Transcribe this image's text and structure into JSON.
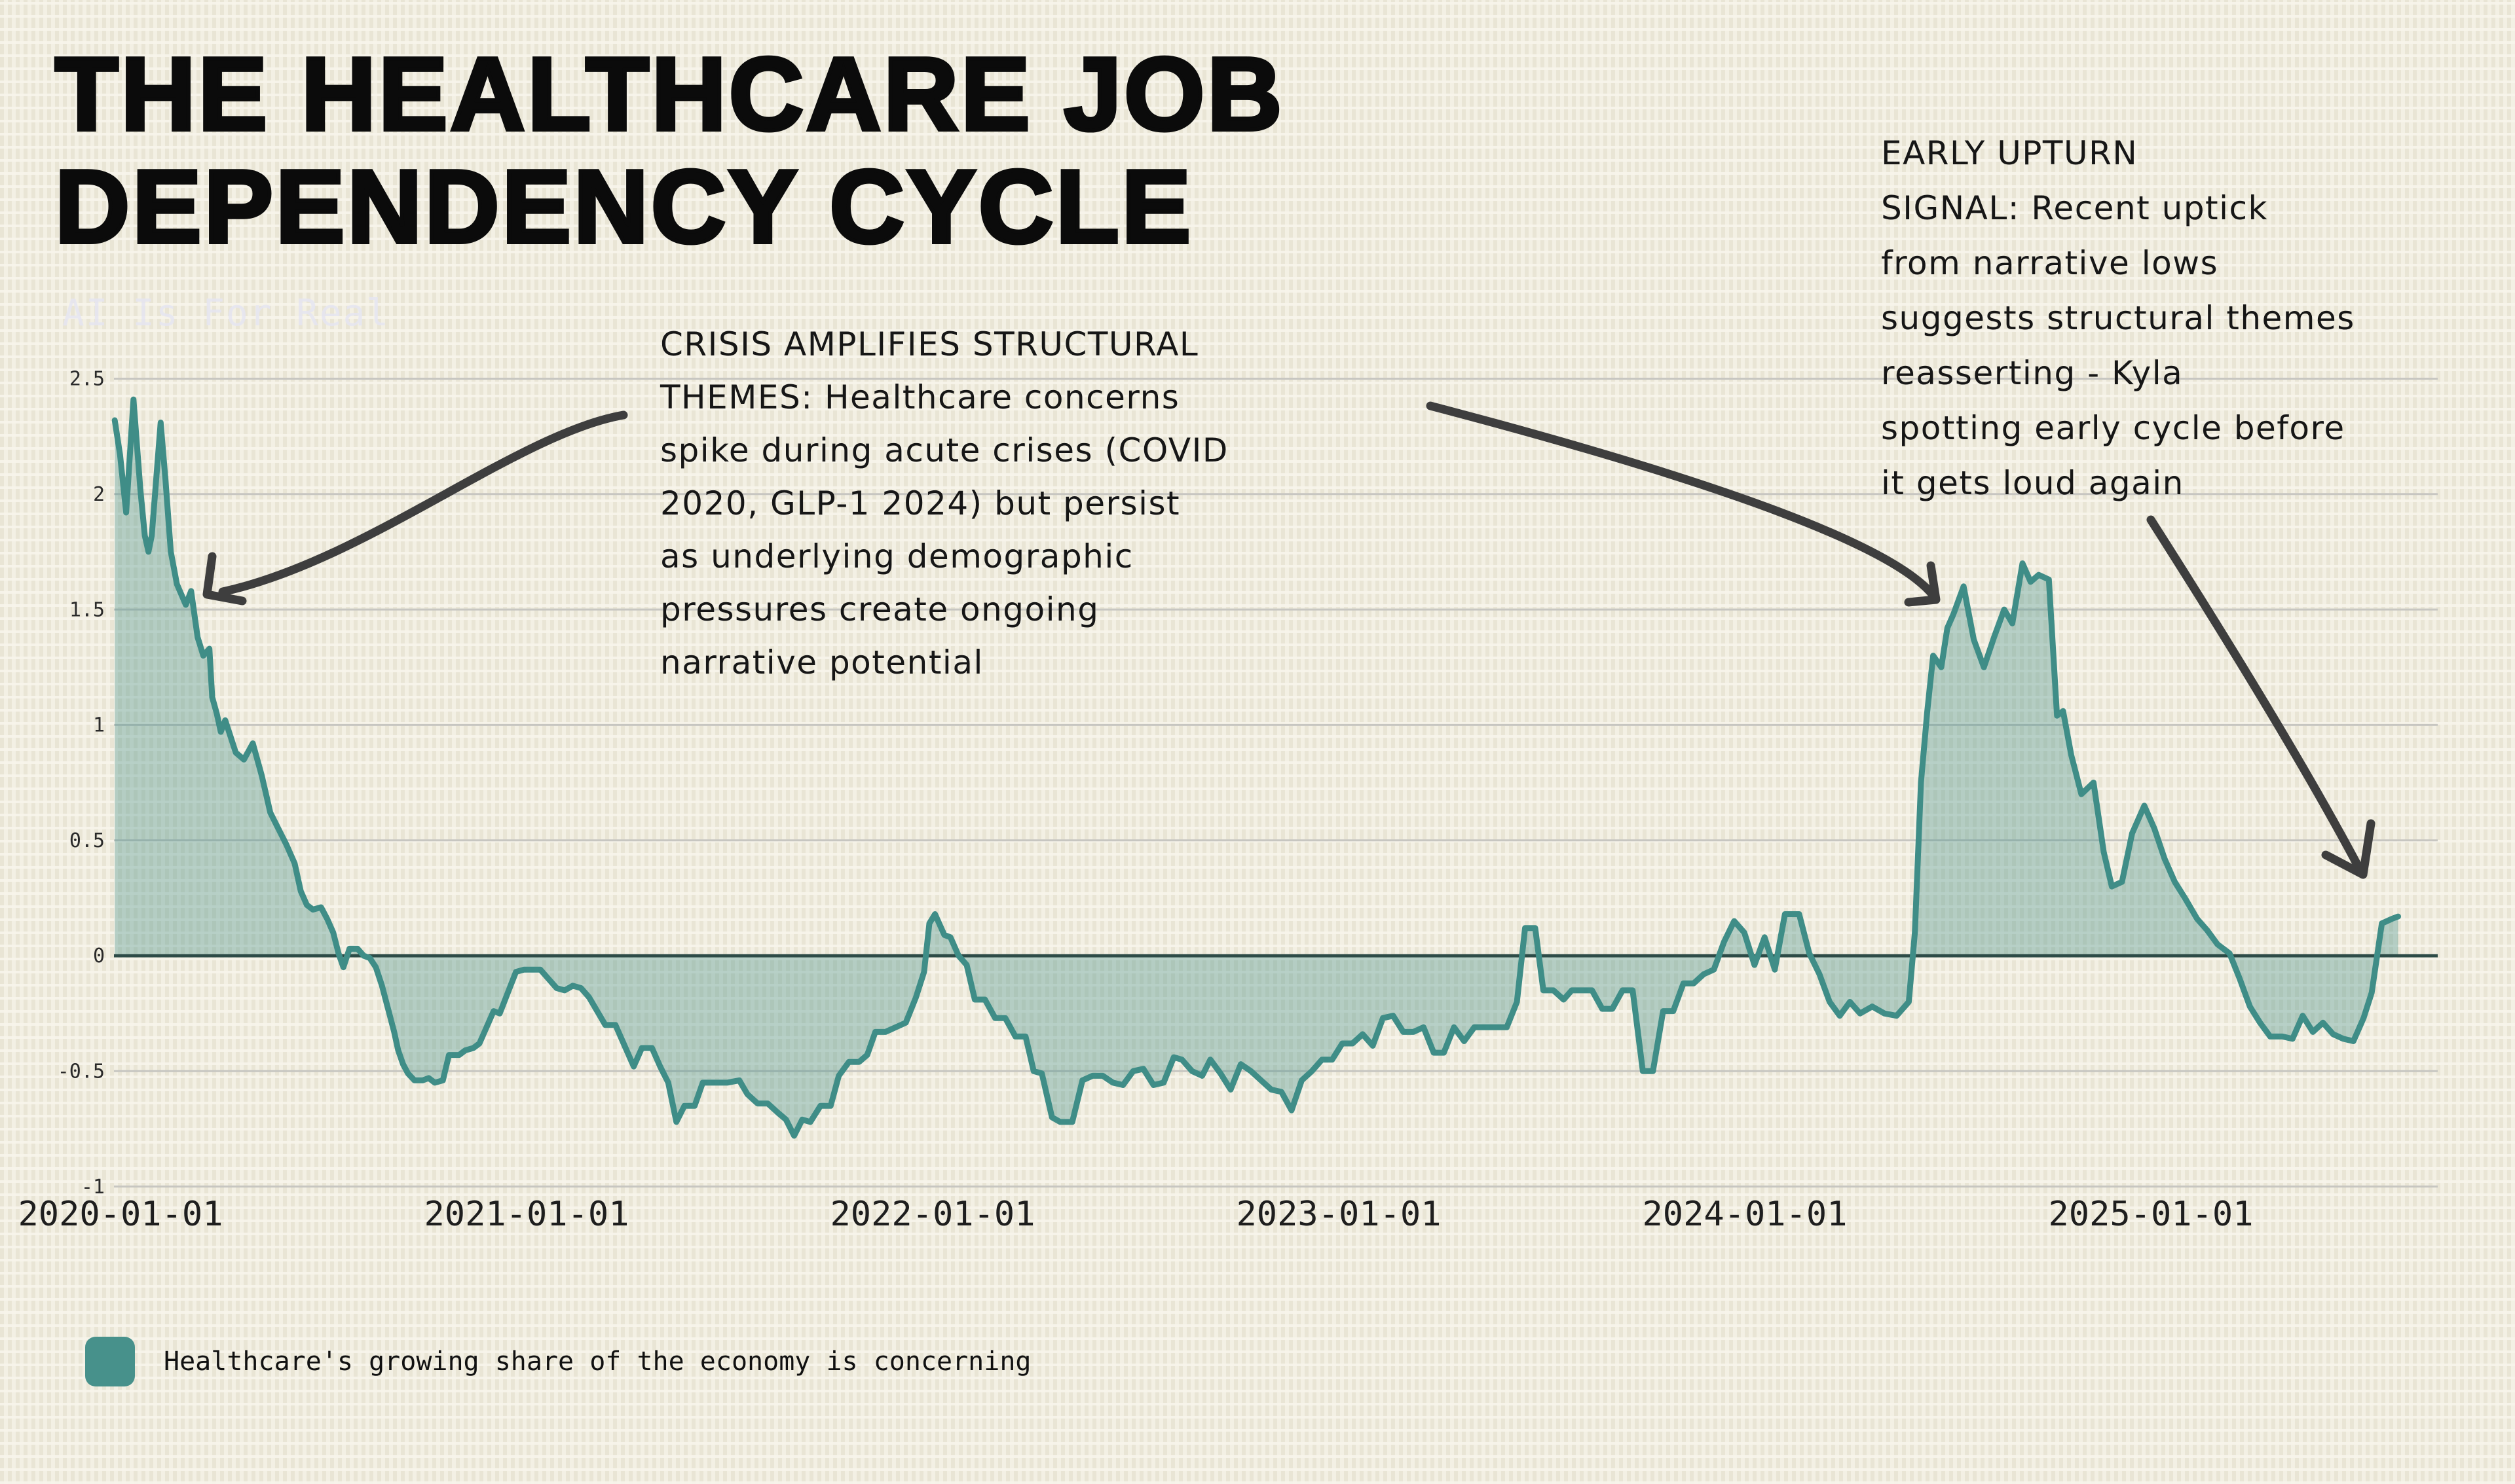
{
  "page": {
    "title_line1": "THE HEALTHCARE JOB",
    "title_line2": "DEPENDENCY CYCLE",
    "watermark": "AI Is For Real"
  },
  "annotations": {
    "crisis": "CRISIS AMPLIFIES STRUCTURAL\nTHEMES: Healthcare concerns\nspike during acute crises (COVID\n2020, GLP-1 2024) but persist\nas underlying demographic\npressures create ongoing\nnarrative potential",
    "early_upturn": "EARLY UPTURN\nSIGNAL: Recent uptick\nfrom narrative lows\nsuggests structural themes\nreasserting - Kyla\nspotting early cycle before\nit gets loud again"
  },
  "legend": {
    "label": "Healthcare's growing share of the economy is concerning",
    "swatch_color": "#47918b"
  },
  "chart_data": {
    "type": "area",
    "title": "The Healthcare Job Dependency Cycle",
    "xlabel": "",
    "ylabel": "",
    "grid": true,
    "legend_position": "bottom-left",
    "x_axis": {
      "unit": "years since 2020-01-01",
      "tick_labels": [
        "2020-01-01",
        "2021-01-01",
        "2022-01-01",
        "2023-01-01",
        "2024-01-01",
        "2025-01-01"
      ],
      "range": [
        0,
        5.72
      ]
    },
    "y_axis": {
      "tick_labels": [
        "2.5",
        "2",
        "1.5",
        "1",
        "0.5",
        "0",
        "-0.5",
        "-1"
      ],
      "range": [
        -1,
        2.5
      ]
    },
    "series": [
      {
        "name": "Healthcare's growing share of the economy is concerning",
        "line_color": "#3f8d87",
        "fill_color": "rgba(63,141,135,0.35)",
        "points": [
          [
            0.002,
            2.32
          ],
          [
            0.015,
            2.17
          ],
          [
            0.03,
            1.92
          ],
          [
            0.048,
            2.41
          ],
          [
            0.065,
            2.02
          ],
          [
            0.076,
            1.82
          ],
          [
            0.085,
            1.75
          ],
          [
            0.093,
            1.82
          ],
          [
            0.115,
            2.31
          ],
          [
            0.127,
            2.06
          ],
          [
            0.14,
            1.75
          ],
          [
            0.155,
            1.61
          ],
          [
            0.177,
            1.52
          ],
          [
            0.19,
            1.58
          ],
          [
            0.206,
            1.38
          ],
          [
            0.22,
            1.3
          ],
          [
            0.235,
            1.33
          ],
          [
            0.242,
            1.12
          ],
          [
            0.253,
            1.05
          ],
          [
            0.263,
            0.97
          ],
          [
            0.274,
            1.02
          ],
          [
            0.3,
            0.88
          ],
          [
            0.32,
            0.85
          ],
          [
            0.342,
            0.92
          ],
          [
            0.364,
            0.78
          ],
          [
            0.385,
            0.62
          ],
          [
            0.405,
            0.55
          ],
          [
            0.425,
            0.48
          ],
          [
            0.445,
            0.4
          ],
          [
            0.46,
            0.28
          ],
          [
            0.475,
            0.22
          ],
          [
            0.49,
            0.2
          ],
          [
            0.51,
            0.21
          ],
          [
            0.525,
            0.16
          ],
          [
            0.54,
            0.1
          ],
          [
            0.553,
            0.01
          ],
          [
            0.565,
            -0.05
          ],
          [
            0.58,
            0.03
          ],
          [
            0.6,
            0.03
          ],
          [
            0.615,
            0.0
          ],
          [
            0.63,
            -0.01
          ],
          [
            0.645,
            -0.05
          ],
          [
            0.66,
            -0.13
          ],
          [
            0.675,
            -0.23
          ],
          [
            0.69,
            -0.33
          ],
          [
            0.7,
            -0.41
          ],
          [
            0.712,
            -0.47
          ],
          [
            0.724,
            -0.51
          ],
          [
            0.74,
            -0.54
          ],
          [
            0.76,
            -0.54
          ],
          [
            0.775,
            -0.53
          ],
          [
            0.79,
            -0.55
          ],
          [
            0.81,
            -0.54
          ],
          [
            0.825,
            -0.43
          ],
          [
            0.85,
            -0.43
          ],
          [
            0.865,
            -0.41
          ],
          [
            0.885,
            -0.4
          ],
          [
            0.9,
            -0.38
          ],
          [
            0.92,
            -0.3
          ],
          [
            0.935,
            -0.24
          ],
          [
            0.95,
            -0.25
          ],
          [
            0.97,
            -0.16
          ],
          [
            0.99,
            -0.07
          ],
          [
            1.01,
            -0.06
          ],
          [
            1.05,
            -0.06
          ],
          [
            1.07,
            -0.1
          ],
          [
            1.09,
            -0.14
          ],
          [
            1.11,
            -0.15
          ],
          [
            1.13,
            -0.13
          ],
          [
            1.15,
            -0.14
          ],
          [
            1.17,
            -0.18
          ],
          [
            1.19,
            -0.24
          ],
          [
            1.21,
            -0.3
          ],
          [
            1.235,
            -0.3
          ],
          [
            1.26,
            -0.4
          ],
          [
            1.28,
            -0.48
          ],
          [
            1.3,
            -0.4
          ],
          [
            1.325,
            -0.4
          ],
          [
            1.345,
            -0.48
          ],
          [
            1.365,
            -0.55
          ],
          [
            1.385,
            -0.72
          ],
          [
            1.405,
            -0.65
          ],
          [
            1.43,
            -0.65
          ],
          [
            1.45,
            -0.55
          ],
          [
            1.48,
            -0.55
          ],
          [
            1.51,
            -0.55
          ],
          [
            1.54,
            -0.54
          ],
          [
            1.56,
            -0.6
          ],
          [
            1.585,
            -0.64
          ],
          [
            1.61,
            -0.64
          ],
          [
            1.635,
            -0.68
          ],
          [
            1.655,
            -0.71
          ],
          [
            1.675,
            -0.78
          ],
          [
            1.695,
            -0.71
          ],
          [
            1.715,
            -0.72
          ],
          [
            1.74,
            -0.65
          ],
          [
            1.765,
            -0.65
          ],
          [
            1.785,
            -0.52
          ],
          [
            1.81,
            -0.46
          ],
          [
            1.835,
            -0.46
          ],
          [
            1.855,
            -0.43
          ],
          [
            1.875,
            -0.33
          ],
          [
            1.9,
            -0.33
          ],
          [
            1.925,
            -0.31
          ],
          [
            1.95,
            -0.29
          ],
          [
            1.975,
            -0.18
          ],
          [
            1.995,
            -0.07
          ],
          [
            2.008,
            0.14
          ],
          [
            2.022,
            0.18
          ],
          [
            2.045,
            0.09
          ],
          [
            2.06,
            0.08
          ],
          [
            2.08,
            0.0
          ],
          [
            2.1,
            -0.04
          ],
          [
            2.12,
            -0.19
          ],
          [
            2.145,
            -0.19
          ],
          [
            2.17,
            -0.27
          ],
          [
            2.195,
            -0.27
          ],
          [
            2.22,
            -0.35
          ],
          [
            2.245,
            -0.35
          ],
          [
            2.265,
            -0.5
          ],
          [
            2.285,
            -0.51
          ],
          [
            2.31,
            -0.7
          ],
          [
            2.33,
            -0.72
          ],
          [
            2.36,
            -0.72
          ],
          [
            2.385,
            -0.54
          ],
          [
            2.41,
            -0.52
          ],
          [
            2.435,
            -0.52
          ],
          [
            2.46,
            -0.55
          ],
          [
            2.485,
            -0.56
          ],
          [
            2.51,
            -0.5
          ],
          [
            2.535,
            -0.49
          ],
          [
            2.56,
            -0.56
          ],
          [
            2.585,
            -0.55
          ],
          [
            2.61,
            -0.44
          ],
          [
            2.63,
            -0.45
          ],
          [
            2.655,
            -0.5
          ],
          [
            2.68,
            -0.52
          ],
          [
            2.7,
            -0.45
          ],
          [
            2.725,
            -0.51
          ],
          [
            2.75,
            -0.58
          ],
          [
            2.775,
            -0.47
          ],
          [
            2.8,
            -0.5
          ],
          [
            2.825,
            -0.54
          ],
          [
            2.85,
            -0.58
          ],
          [
            2.875,
            -0.59
          ],
          [
            2.9,
            -0.67
          ],
          [
            2.925,
            -0.54
          ],
          [
            2.95,
            -0.5
          ],
          [
            2.975,
            -0.45
          ],
          [
            3.0,
            -0.45
          ],
          [
            3.025,
            -0.38
          ],
          [
            3.05,
            -0.38
          ],
          [
            3.075,
            -0.34
          ],
          [
            3.1,
            -0.39
          ],
          [
            3.125,
            -0.27
          ],
          [
            3.15,
            -0.26
          ],
          [
            3.175,
            -0.33
          ],
          [
            3.2,
            -0.33
          ],
          [
            3.225,
            -0.31
          ],
          [
            3.25,
            -0.42
          ],
          [
            3.275,
            -0.42
          ],
          [
            3.3,
            -0.31
          ],
          [
            3.325,
            -0.37
          ],
          [
            3.35,
            -0.31
          ],
          [
            3.4,
            -0.31
          ],
          [
            3.43,
            -0.31
          ],
          [
            3.455,
            -0.2
          ],
          [
            3.475,
            0.12
          ],
          [
            3.5,
            0.12
          ],
          [
            3.52,
            -0.15
          ],
          [
            3.545,
            -0.15
          ],
          [
            3.57,
            -0.19
          ],
          [
            3.59,
            -0.15
          ],
          [
            3.64,
            -0.15
          ],
          [
            3.665,
            -0.23
          ],
          [
            3.69,
            -0.23
          ],
          [
            3.715,
            -0.15
          ],
          [
            3.74,
            -0.15
          ],
          [
            3.765,
            -0.5
          ],
          [
            3.79,
            -0.5
          ],
          [
            3.815,
            -0.24
          ],
          [
            3.84,
            -0.24
          ],
          [
            3.865,
            -0.12
          ],
          [
            3.89,
            -0.12
          ],
          [
            3.915,
            -0.08
          ],
          [
            3.94,
            -0.06
          ],
          [
            3.965,
            0.06
          ],
          [
            3.99,
            0.15
          ],
          [
            4.015,
            0.1
          ],
          [
            4.04,
            -0.04
          ],
          [
            4.065,
            0.08
          ],
          [
            4.09,
            -0.06
          ],
          [
            4.115,
            0.18
          ],
          [
            4.15,
            0.18
          ],
          [
            4.175,
            0.01
          ],
          [
            4.2,
            -0.08
          ],
          [
            4.225,
            -0.2
          ],
          [
            4.25,
            -0.26
          ],
          [
            4.275,
            -0.2
          ],
          [
            4.3,
            -0.25
          ],
          [
            4.33,
            -0.22
          ],
          [
            4.36,
            -0.25
          ],
          [
            4.39,
            -0.26
          ],
          [
            4.42,
            -0.2
          ],
          [
            4.435,
            0.1
          ],
          [
            4.45,
            0.75
          ],
          [
            4.465,
            1.05
          ],
          [
            4.48,
            1.3
          ],
          [
            4.5,
            1.25
          ],
          [
            4.515,
            1.42
          ],
          [
            4.53,
            1.48
          ],
          [
            4.555,
            1.6
          ],
          [
            4.58,
            1.37
          ],
          [
            4.605,
            1.25
          ],
          [
            4.63,
            1.38
          ],
          [
            4.655,
            1.5
          ],
          [
            4.675,
            1.44
          ],
          [
            4.7,
            1.7
          ],
          [
            4.72,
            1.62
          ],
          [
            4.74,
            1.65
          ],
          [
            4.765,
            1.63
          ],
          [
            4.785,
            1.04
          ],
          [
            4.8,
            1.06
          ],
          [
            4.82,
            0.87
          ],
          [
            4.845,
            0.7
          ],
          [
            4.875,
            0.75
          ],
          [
            4.9,
            0.45
          ],
          [
            4.92,
            0.3
          ],
          [
            4.945,
            0.32
          ],
          [
            4.97,
            0.53
          ],
          [
            5.0,
            0.65
          ],
          [
            5.025,
            0.55
          ],
          [
            5.05,
            0.42
          ],
          [
            5.075,
            0.32
          ],
          [
            5.1,
            0.25
          ],
          [
            5.13,
            0.16
          ],
          [
            5.155,
            0.11
          ],
          [
            5.18,
            0.05
          ],
          [
            5.21,
            0.01
          ],
          [
            5.235,
            -0.1
          ],
          [
            5.26,
            -0.22
          ],
          [
            5.285,
            -0.29
          ],
          [
            5.31,
            -0.35
          ],
          [
            5.34,
            -0.35
          ],
          [
            5.365,
            -0.36
          ],
          [
            5.39,
            -0.26
          ],
          [
            5.415,
            -0.33
          ],
          [
            5.44,
            -0.29
          ],
          [
            5.465,
            -0.34
          ],
          [
            5.49,
            -0.36
          ],
          [
            5.515,
            -0.37
          ],
          [
            5.54,
            -0.27
          ],
          [
            5.56,
            -0.16
          ],
          [
            5.585,
            0.14
          ],
          [
            5.61,
            0.16
          ],
          [
            5.625,
            0.17
          ]
        ]
      }
    ]
  }
}
